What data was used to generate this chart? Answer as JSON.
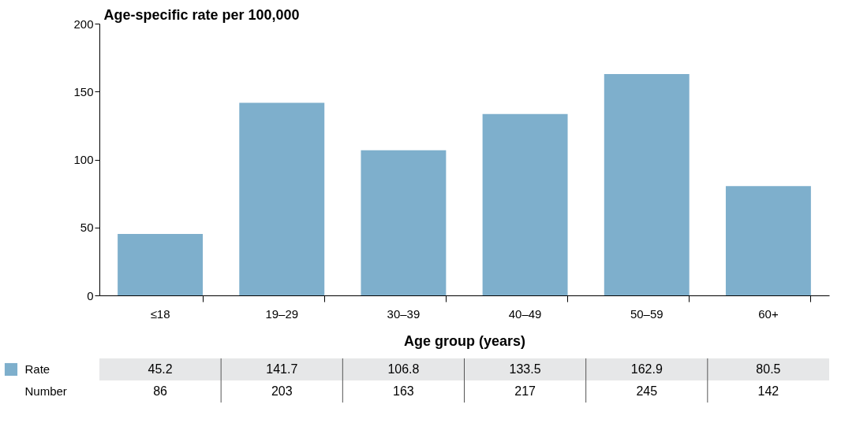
{
  "chart_data": {
    "type": "bar",
    "ylabel": "Age-specific rate per 100,000",
    "xlabel": "Age group (years)",
    "categories": [
      "≤18",
      "19–29",
      "30–39",
      "40–49",
      "50–59",
      "60+"
    ],
    "series": [
      {
        "name": "Rate",
        "color": "#7eafcc",
        "values": [
          45.2,
          141.7,
          106.8,
          133.5,
          162.9,
          80.5
        ]
      }
    ],
    "annotations": [
      "Number",
      "86",
      "203",
      "163",
      "217",
      "245",
      "142"
    ],
    "ylim": [
      0,
      200
    ],
    "yticks": [
      0,
      50,
      100,
      150,
      200
    ],
    "grid": false,
    "legend": "bottom",
    "data_labels": true
  }
}
